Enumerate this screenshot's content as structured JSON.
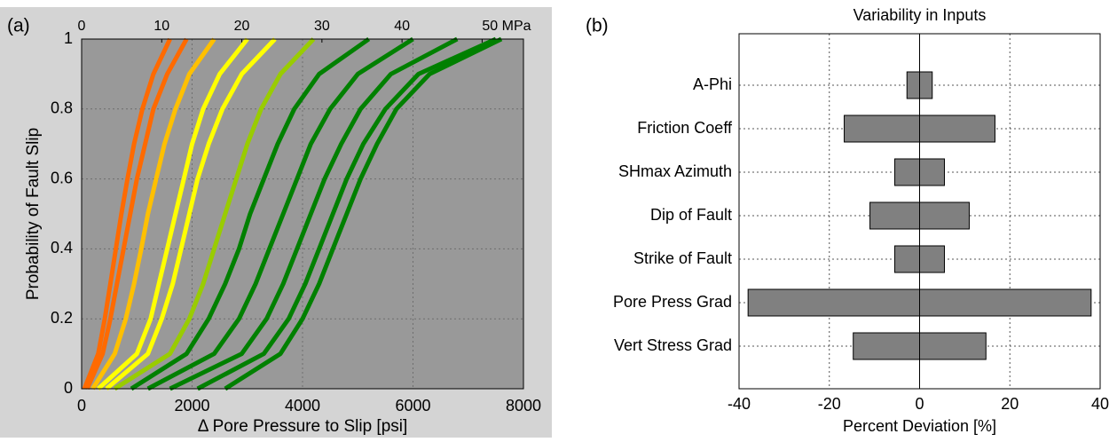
{
  "chart_data": [
    {
      "type": "line",
      "panel_label": "(a)",
      "xlabel": "Δ Pore Pressure to Slip [psi]",
      "ylabel": "Probability of Fault Slip",
      "xlim": [
        0,
        8000
      ],
      "xticks": [
        0,
        2000,
        4000,
        6000,
        8000
      ],
      "x2lim": [
        0,
        55.16
      ],
      "x2ticks": [
        0,
        10,
        20,
        30,
        40,
        {
          "value": 50,
          "label": "50 MPa"
        }
      ],
      "ylim": [
        0,
        1
      ],
      "yticks": [
        0,
        0.2,
        0.4,
        0.6,
        0.8,
        1
      ],
      "grid": true,
      "series": [
        {
          "color": "#ff6a00",
          "x": [
            50,
            300,
            420,
            520,
            620,
            720,
            830,
            950,
            1100,
            1300,
            1600
          ],
          "values": [
            0,
            0.1,
            0.2,
            0.3,
            0.4,
            0.5,
            0.6,
            0.7,
            0.8,
            0.9,
            1
          ]
        },
        {
          "color": "#ff6a00",
          "x": [
            100,
            380,
            520,
            640,
            760,
            880,
            1000,
            1150,
            1300,
            1550,
            1900
          ],
          "values": [
            0,
            0.1,
            0.2,
            0.3,
            0.4,
            0.5,
            0.6,
            0.7,
            0.8,
            0.9,
            1
          ]
        },
        {
          "color": "#ffc000",
          "x": [
            200,
            600,
            800,
            950,
            1080,
            1200,
            1350,
            1500,
            1700,
            1950,
            2400
          ],
          "values": [
            0,
            0.1,
            0.2,
            0.3,
            0.4,
            0.5,
            0.6,
            0.7,
            0.8,
            0.9,
            1
          ]
        },
        {
          "color": "#ffff00",
          "x": [
            300,
            1000,
            1250,
            1400,
            1550,
            1700,
            1850,
            2000,
            2200,
            2500,
            3000
          ],
          "values": [
            0,
            0.1,
            0.2,
            0.3,
            0.4,
            0.5,
            0.6,
            0.7,
            0.8,
            0.9,
            1
          ]
        },
        {
          "color": "#ffff00",
          "x": [
            450,
            1200,
            1450,
            1650,
            1800,
            1950,
            2100,
            2300,
            2550,
            2900,
            3500
          ],
          "values": [
            0,
            0.1,
            0.2,
            0.3,
            0.4,
            0.5,
            0.6,
            0.7,
            0.8,
            0.9,
            1
          ]
        },
        {
          "color": "#99cc00",
          "x": [
            600,
            1600,
            1950,
            2200,
            2400,
            2600,
            2800,
            3000,
            3250,
            3600,
            4200
          ],
          "values": [
            0,
            0.1,
            0.2,
            0.3,
            0.4,
            0.5,
            0.6,
            0.7,
            0.8,
            0.9,
            1
          ]
        },
        {
          "color": "#008000",
          "x": [
            900,
            1900,
            2300,
            2600,
            2850,
            3050,
            3300,
            3550,
            3850,
            4300,
            5200
          ],
          "values": [
            0,
            0.1,
            0.2,
            0.3,
            0.4,
            0.5,
            0.6,
            0.7,
            0.8,
            0.9,
            1
          ]
        },
        {
          "color": "#008000",
          "x": [
            1200,
            2400,
            2850,
            3150,
            3400,
            3650,
            3900,
            4150,
            4500,
            5000,
            6000
          ],
          "values": [
            0,
            0.1,
            0.2,
            0.3,
            0.4,
            0.5,
            0.6,
            0.7,
            0.8,
            0.9,
            1
          ]
        },
        {
          "color": "#008000",
          "x": [
            1600,
            2900,
            3350,
            3650,
            3900,
            4150,
            4400,
            4700,
            5050,
            5600,
            6800
          ],
          "values": [
            0,
            0.1,
            0.2,
            0.3,
            0.4,
            0.5,
            0.6,
            0.7,
            0.8,
            0.9,
            1
          ]
        },
        {
          "color": "#008000",
          "x": [
            2100,
            3300,
            3750,
            4050,
            4300,
            4550,
            4800,
            5100,
            5500,
            6100,
            7500
          ],
          "values": [
            0,
            0.1,
            0.2,
            0.3,
            0.4,
            0.5,
            0.6,
            0.7,
            0.8,
            0.9,
            1
          ]
        },
        {
          "color": "#008000",
          "x": [
            2600,
            3600,
            4000,
            4300,
            4550,
            4800,
            5050,
            5350,
            5700,
            6300,
            7600
          ],
          "values": [
            0,
            0.1,
            0.2,
            0.3,
            0.4,
            0.5,
            0.6,
            0.7,
            0.8,
            0.9,
            1
          ]
        }
      ]
    },
    {
      "type": "bar",
      "orientation": "horizontal",
      "panel_label": "(b)",
      "title": "Variability in Inputs",
      "xlabel": "Percent Deviation [%]",
      "categories": [
        "A-Phi",
        "Friction Coeff",
        "SHmax Azimuth",
        "Dip of Fault",
        "Strike of Fault",
        "Pore Press Grad",
        "Vert Stress Grad"
      ],
      "xlim": [
        -40,
        40
      ],
      "xticks": [
        -40,
        -20,
        0,
        20,
        40
      ],
      "grid": true,
      "series": [
        {
          "color": "#808080",
          "values": [
            -2.8,
            -16.7,
            -5.5,
            -11,
            -5.5,
            -38,
            -14.7
          ]
        },
        {
          "color": "#808080",
          "values": [
            2.8,
            16.7,
            5.5,
            11,
            5.5,
            38,
            14.7
          ]
        }
      ]
    }
  ]
}
